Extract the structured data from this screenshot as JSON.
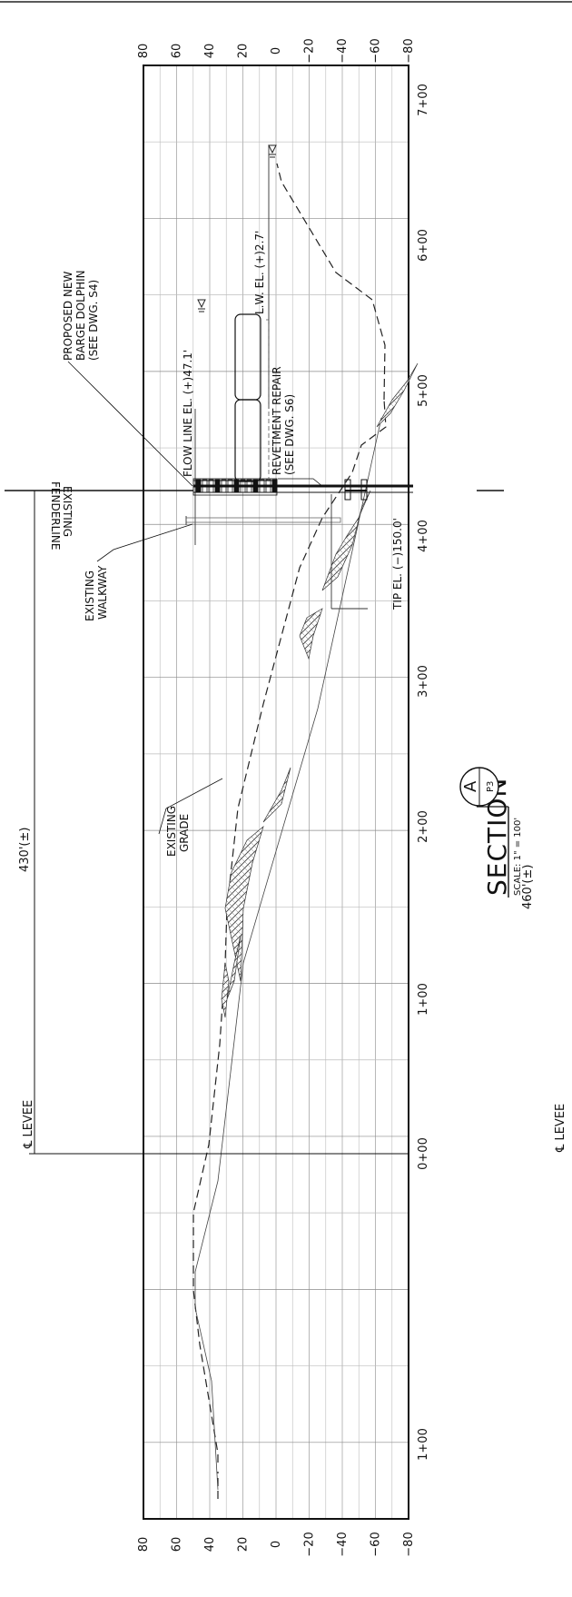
{
  "title": {
    "main": "SECTION",
    "scale": "SCALE: 1\" = 100'",
    "callout_letter": "A",
    "callout_sheet": "P3"
  },
  "elevations": [
    "80",
    "60",
    "40",
    "20",
    "0",
    "−20",
    "−40",
    "−60",
    "−80"
  ],
  "stations": [
    "1+00",
    "0+00",
    "1+00",
    "2+00",
    "3+00",
    "4+00",
    "5+00",
    "6+00",
    "7+00"
  ],
  "labels": {
    "levee_top": "℄ LEVEE",
    "levee_bottom": "℄ LEVEE",
    "dimension_430": "430'(±)",
    "dimension_460": "460'(±)",
    "existing_fenderline_1": "EXISTING",
    "existing_fenderline_2": "FENDERLINE",
    "proposed_1": "PROPOSED NEW",
    "proposed_2": "BARGE DOLPHIN",
    "proposed_3": "(SEE DWG. S4)",
    "flow_line": "FLOW LINE EL. (+)47.1'",
    "low_water": "L.W. EL. (+)2.7'",
    "revetment_1": "REVETMENT REPAIR",
    "revetment_2": "(SEE DWG. S6)",
    "walkway_1": "EXISTING",
    "walkway_2": "WALKWAY",
    "tip": "TIP EL. (−)150.0'",
    "grade_1": "EXISTING",
    "grade_2": "GRADE"
  }
}
